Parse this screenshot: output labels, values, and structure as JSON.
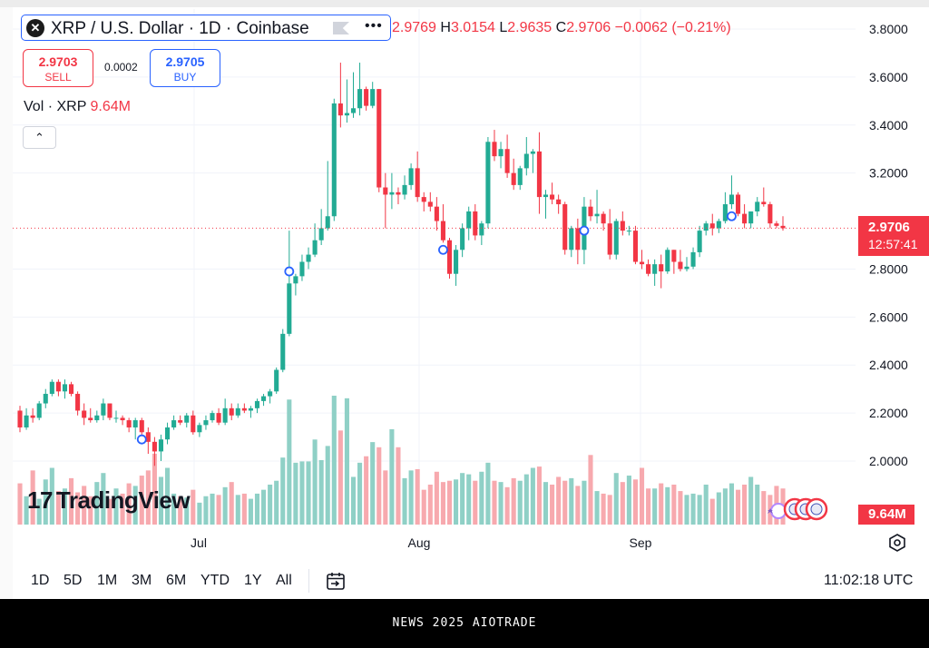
{
  "header": {
    "logo_glyph": "✕",
    "title": "XRP / U.S. Dollar · 1D · Coinbase",
    "more_glyph": "•••",
    "ohlc": {
      "o_label": "",
      "o_value": "2.9769",
      "h_label": "H",
      "h_value": "3.0154",
      "l_label": "L",
      "l_value": "2.9635",
      "c_label": "C",
      "c_value": "2.9706",
      "change": "−0.0062 (−0.21%)"
    }
  },
  "trade": {
    "sell_price": "2.9703",
    "sell_label": "SELL",
    "spread": "0.0002",
    "buy_price": "2.9705",
    "buy_label": "BUY"
  },
  "volume_legend": {
    "label": "Vol · XRP",
    "value": "9.64M"
  },
  "collapse_glyph": "⌃",
  "watermark": {
    "mark": "17",
    "text": "TradingView"
  },
  "price_label": {
    "price": "2.9706",
    "countdown": "12:57:41"
  },
  "volume_label": "9.64M",
  "bottom_bar": {
    "ranges": [
      "1D",
      "5D",
      "1M",
      "3M",
      "6M",
      "YTD",
      "1Y",
      "All"
    ],
    "clock": "11:02:18 UTC"
  },
  "footer": "NEWS 2025 AIOTRADE",
  "colors": {
    "up": "#22ab94",
    "down": "#f23645",
    "up_vol": "#8fd0c6",
    "down_vol": "#f7a9ae",
    "accent": "#2962ff"
  },
  "chart_data": {
    "type": "candlestick",
    "symbol": "XRP / U.S. Dollar",
    "interval": "1D",
    "exchange": "Coinbase",
    "y_axis": {
      "ticks": [
        "3.8000",
        "3.6000",
        "3.4000",
        "3.2000",
        "2.8000",
        "2.6000",
        "2.4000",
        "2.2000",
        "2.0000"
      ],
      "ylim": [
        1.75,
        3.85
      ]
    },
    "x_axis": {
      "ticks": [
        "Jul",
        "Aug",
        "Sep"
      ]
    },
    "last_price": 2.9706,
    "candles": [
      {
        "o": 2.21,
        "h": 2.23,
        "l": 2.12,
        "c": 2.14
      },
      {
        "o": 2.14,
        "h": 2.22,
        "l": 2.13,
        "c": 2.19
      },
      {
        "o": 2.19,
        "h": 2.22,
        "l": 2.16,
        "c": 2.18
      },
      {
        "o": 2.18,
        "h": 2.25,
        "l": 2.17,
        "c": 2.24
      },
      {
        "o": 2.24,
        "h": 2.3,
        "l": 2.22,
        "c": 2.28
      },
      {
        "o": 2.28,
        "h": 2.34,
        "l": 2.27,
        "c": 2.33
      },
      {
        "o": 2.33,
        "h": 2.34,
        "l": 2.27,
        "c": 2.29
      },
      {
        "o": 2.29,
        "h": 2.34,
        "l": 2.26,
        "c": 2.32
      },
      {
        "o": 2.32,
        "h": 2.33,
        "l": 2.27,
        "c": 2.28
      },
      {
        "o": 2.28,
        "h": 2.29,
        "l": 2.19,
        "c": 2.21
      },
      {
        "o": 2.21,
        "h": 2.24,
        "l": 2.15,
        "c": 2.18
      },
      {
        "o": 2.18,
        "h": 2.22,
        "l": 2.16,
        "c": 2.17
      },
      {
        "o": 2.17,
        "h": 2.21,
        "l": 2.16,
        "c": 2.19
      },
      {
        "o": 2.19,
        "h": 2.26,
        "l": 2.17,
        "c": 2.24
      },
      {
        "o": 2.24,
        "h": 2.24,
        "l": 2.17,
        "c": 2.18
      },
      {
        "o": 2.18,
        "h": 2.21,
        "l": 2.16,
        "c": 2.18
      },
      {
        "o": 2.18,
        "h": 2.19,
        "l": 2.15,
        "c": 2.17
      },
      {
        "o": 2.17,
        "h": 2.18,
        "l": 2.12,
        "c": 2.14
      },
      {
        "o": 2.14,
        "h": 2.18,
        "l": 2.09,
        "c": 2.17
      },
      {
        "o": 2.17,
        "h": 2.18,
        "l": 2.1,
        "c": 2.12
      },
      {
        "o": 2.12,
        "h": 2.14,
        "l": 2.03,
        "c": 2.08
      },
      {
        "o": 2.08,
        "h": 2.1,
        "l": 1.98,
        "c": 2.04
      },
      {
        "o": 2.04,
        "h": 2.11,
        "l": 2.0,
        "c": 2.09
      },
      {
        "o": 2.09,
        "h": 2.16,
        "l": 2.07,
        "c": 2.14
      },
      {
        "o": 2.14,
        "h": 2.19,
        "l": 2.13,
        "c": 2.17
      },
      {
        "o": 2.17,
        "h": 2.19,
        "l": 2.15,
        "c": 2.16
      },
      {
        "o": 2.16,
        "h": 2.2,
        "l": 2.14,
        "c": 2.19
      },
      {
        "o": 2.19,
        "h": 2.21,
        "l": 2.11,
        "c": 2.12
      },
      {
        "o": 2.12,
        "h": 2.16,
        "l": 2.1,
        "c": 2.15
      },
      {
        "o": 2.15,
        "h": 2.19,
        "l": 2.13,
        "c": 2.17
      },
      {
        "o": 2.17,
        "h": 2.21,
        "l": 2.16,
        "c": 2.2
      },
      {
        "o": 2.2,
        "h": 2.22,
        "l": 2.15,
        "c": 2.16
      },
      {
        "o": 2.16,
        "h": 2.26,
        "l": 2.15,
        "c": 2.22
      },
      {
        "o": 2.22,
        "h": 2.24,
        "l": 2.17,
        "c": 2.19
      },
      {
        "o": 2.19,
        "h": 2.24,
        "l": 2.18,
        "c": 2.22
      },
      {
        "o": 2.22,
        "h": 2.24,
        "l": 2.2,
        "c": 2.21
      },
      {
        "o": 2.21,
        "h": 2.23,
        "l": 2.18,
        "c": 2.22
      },
      {
        "o": 2.22,
        "h": 2.26,
        "l": 2.2,
        "c": 2.25
      },
      {
        "o": 2.25,
        "h": 2.28,
        "l": 2.23,
        "c": 2.27
      },
      {
        "o": 2.27,
        "h": 2.3,
        "l": 2.24,
        "c": 2.29
      },
      {
        "o": 2.29,
        "h": 2.39,
        "l": 2.28,
        "c": 2.38
      },
      {
        "o": 2.38,
        "h": 2.55,
        "l": 2.37,
        "c": 2.53
      },
      {
        "o": 2.53,
        "h": 2.96,
        "l": 2.52,
        "c": 2.74
      },
      {
        "o": 2.74,
        "h": 2.78,
        "l": 2.69,
        "c": 2.77
      },
      {
        "o": 2.77,
        "h": 2.86,
        "l": 2.75,
        "c": 2.83
      },
      {
        "o": 2.83,
        "h": 2.89,
        "l": 2.8,
        "c": 2.86
      },
      {
        "o": 2.86,
        "h": 2.99,
        "l": 2.85,
        "c": 2.92
      },
      {
        "o": 2.92,
        "h": 3.05,
        "l": 2.9,
        "c": 2.97
      },
      {
        "o": 2.97,
        "h": 3.25,
        "l": 2.96,
        "c": 3.02
      },
      {
        "o": 3.02,
        "h": 3.51,
        "l": 3.0,
        "c": 3.49
      },
      {
        "o": 3.49,
        "h": 3.66,
        "l": 3.39,
        "c": 3.44
      },
      {
        "o": 3.44,
        "h": 3.59,
        "l": 3.41,
        "c": 3.45
      },
      {
        "o": 3.45,
        "h": 3.62,
        "l": 3.43,
        "c": 3.47
      },
      {
        "o": 3.47,
        "h": 3.66,
        "l": 3.44,
        "c": 3.55
      },
      {
        "o": 3.55,
        "h": 3.56,
        "l": 3.46,
        "c": 3.48
      },
      {
        "o": 3.48,
        "h": 3.58,
        "l": 3.47,
        "c": 3.55
      },
      {
        "o": 3.55,
        "h": 3.55,
        "l": 3.12,
        "c": 3.14
      },
      {
        "o": 3.14,
        "h": 3.2,
        "l": 2.97,
        "c": 3.11
      },
      {
        "o": 3.11,
        "h": 3.2,
        "l": 3.05,
        "c": 3.12
      },
      {
        "o": 3.12,
        "h": 3.14,
        "l": 3.07,
        "c": 3.11
      },
      {
        "o": 3.11,
        "h": 3.19,
        "l": 3.09,
        "c": 3.15
      },
      {
        "o": 3.15,
        "h": 3.24,
        "l": 3.13,
        "c": 3.22
      },
      {
        "o": 3.22,
        "h": 3.29,
        "l": 3.08,
        "c": 3.1
      },
      {
        "o": 3.1,
        "h": 3.12,
        "l": 3.04,
        "c": 3.08
      },
      {
        "o": 3.08,
        "h": 3.12,
        "l": 3.04,
        "c": 3.06
      },
      {
        "o": 3.06,
        "h": 3.1,
        "l": 2.96,
        "c": 3.0
      },
      {
        "o": 3.0,
        "h": 3.07,
        "l": 2.91,
        "c": 2.92
      },
      {
        "o": 2.92,
        "h": 2.93,
        "l": 2.76,
        "c": 2.78
      },
      {
        "o": 2.78,
        "h": 2.9,
        "l": 2.73,
        "c": 2.88
      },
      {
        "o": 2.88,
        "h": 2.99,
        "l": 2.85,
        "c": 2.97
      },
      {
        "o": 2.97,
        "h": 3.06,
        "l": 2.92,
        "c": 3.04
      },
      {
        "o": 3.04,
        "h": 3.07,
        "l": 2.92,
        "c": 2.94
      },
      {
        "o": 2.94,
        "h": 3.0,
        "l": 2.9,
        "c": 2.99
      },
      {
        "o": 2.99,
        "h": 3.35,
        "l": 2.97,
        "c": 3.33
      },
      {
        "o": 3.33,
        "h": 3.38,
        "l": 3.25,
        "c": 3.27
      },
      {
        "o": 3.27,
        "h": 3.33,
        "l": 3.22,
        "c": 3.3
      },
      {
        "o": 3.3,
        "h": 3.36,
        "l": 3.18,
        "c": 3.2
      },
      {
        "o": 3.2,
        "h": 3.26,
        "l": 3.13,
        "c": 3.15
      },
      {
        "o": 3.15,
        "h": 3.23,
        "l": 3.13,
        "c": 3.22
      },
      {
        "o": 3.22,
        "h": 3.35,
        "l": 3.19,
        "c": 3.28
      },
      {
        "o": 3.28,
        "h": 3.3,
        "l": 3.2,
        "c": 3.29
      },
      {
        "o": 3.29,
        "h": 3.37,
        "l": 3.03,
        "c": 3.1
      },
      {
        "o": 3.1,
        "h": 3.13,
        "l": 3.01,
        "c": 3.11
      },
      {
        "o": 3.11,
        "h": 3.16,
        "l": 3.07,
        "c": 3.09
      },
      {
        "o": 3.09,
        "h": 3.11,
        "l": 3.03,
        "c": 3.07
      },
      {
        "o": 3.07,
        "h": 3.08,
        "l": 2.86,
        "c": 2.88
      },
      {
        "o": 2.88,
        "h": 2.98,
        "l": 2.85,
        "c": 2.97
      },
      {
        "o": 2.97,
        "h": 3.01,
        "l": 2.82,
        "c": 2.88
      },
      {
        "o": 2.88,
        "h": 3.1,
        "l": 2.82,
        "c": 3.06
      },
      {
        "o": 3.06,
        "h": 3.09,
        "l": 3.0,
        "c": 3.02
      },
      {
        "o": 3.02,
        "h": 3.13,
        "l": 2.99,
        "c": 3.03
      },
      {
        "o": 3.03,
        "h": 3.04,
        "l": 2.96,
        "c": 2.99
      },
      {
        "o": 2.99,
        "h": 3.05,
        "l": 2.84,
        "c": 2.86
      },
      {
        "o": 2.86,
        "h": 3.01,
        "l": 2.84,
        "c": 3.0
      },
      {
        "o": 3.0,
        "h": 3.04,
        "l": 2.94,
        "c": 2.96
      },
      {
        "o": 2.96,
        "h": 2.98,
        "l": 2.94,
        "c": 2.96
      },
      {
        "o": 2.96,
        "h": 2.98,
        "l": 2.82,
        "c": 2.83
      },
      {
        "o": 2.83,
        "h": 2.88,
        "l": 2.8,
        "c": 2.82
      },
      {
        "o": 2.82,
        "h": 2.84,
        "l": 2.77,
        "c": 2.78
      },
      {
        "o": 2.78,
        "h": 2.84,
        "l": 2.73,
        "c": 2.82
      },
      {
        "o": 2.82,
        "h": 2.86,
        "l": 2.72,
        "c": 2.79
      },
      {
        "o": 2.79,
        "h": 2.89,
        "l": 2.78,
        "c": 2.88
      },
      {
        "o": 2.88,
        "h": 2.88,
        "l": 2.78,
        "c": 2.83
      },
      {
        "o": 2.83,
        "h": 2.88,
        "l": 2.79,
        "c": 2.8
      },
      {
        "o": 2.8,
        "h": 2.85,
        "l": 2.79,
        "c": 2.81
      },
      {
        "o": 2.81,
        "h": 2.89,
        "l": 2.8,
        "c": 2.87
      },
      {
        "o": 2.87,
        "h": 2.98,
        "l": 2.85,
        "c": 2.96
      },
      {
        "o": 2.96,
        "h": 3.0,
        "l": 2.94,
        "c": 2.99
      },
      {
        "o": 2.99,
        "h": 3.03,
        "l": 2.94,
        "c": 2.97
      },
      {
        "o": 2.97,
        "h": 3.01,
        "l": 2.95,
        "c": 3.0
      },
      {
        "o": 3.0,
        "h": 3.12,
        "l": 2.99,
        "c": 3.07
      },
      {
        "o": 3.07,
        "h": 3.19,
        "l": 3.05,
        "c": 3.11
      },
      {
        "o": 3.11,
        "h": 3.12,
        "l": 3.02,
        "c": 3.03
      },
      {
        "o": 3.03,
        "h": 3.07,
        "l": 2.97,
        "c": 2.99
      },
      {
        "o": 2.99,
        "h": 3.04,
        "l": 2.97,
        "c": 3.04
      },
      {
        "o": 3.04,
        "h": 3.1,
        "l": 3.02,
        "c": 3.08
      },
      {
        "o": 3.08,
        "h": 3.14,
        "l": 3.06,
        "c": 3.07
      },
      {
        "o": 3.07,
        "h": 3.08,
        "l": 2.97,
        "c": 2.99
      },
      {
        "o": 2.99,
        "h": 3.0,
        "l": 2.97,
        "c": 2.98
      },
      {
        "o": 2.98,
        "h": 3.02,
        "l": 2.96,
        "c": 2.97
      }
    ],
    "volume_relative": [
      0.32,
      0.22,
      0.42,
      0.2,
      0.35,
      0.44,
      0.26,
      0.28,
      0.36,
      0.25,
      0.3,
      0.22,
      0.33,
      0.4,
      0.2,
      0.28,
      0.24,
      0.32,
      0.3,
      0.38,
      0.42,
      0.55,
      0.37,
      0.44,
      0.24,
      0.22,
      0.21,
      0.27,
      0.17,
      0.22,
      0.24,
      0.23,
      0.29,
      0.33,
      0.23,
      0.24,
      0.2,
      0.24,
      0.27,
      0.31,
      0.34,
      0.52,
      0.97,
      0.48,
      0.49,
      0.49,
      0.66,
      0.5,
      0.61,
      1.0,
      0.73,
      0.98,
      0.37,
      0.48,
      0.53,
      0.64,
      0.6,
      0.42,
      0.74,
      0.6,
      0.36,
      0.42,
      0.43,
      0.27,
      0.31,
      0.41,
      0.33,
      0.34,
      0.35,
      0.4,
      0.39,
      0.34,
      0.41,
      0.48,
      0.34,
      0.33,
      0.29,
      0.36,
      0.34,
      0.39,
      0.44,
      0.45,
      0.33,
      0.31,
      0.37,
      0.34,
      0.36,
      0.3,
      0.34,
      0.54,
      0.26,
      0.24,
      0.23,
      0.4,
      0.33,
      0.38,
      0.35,
      0.44,
      0.28,
      0.28,
      0.32,
      0.29,
      0.31,
      0.26,
      0.23,
      0.24,
      0.23,
      0.31,
      0.2,
      0.25,
      0.28,
      0.32,
      0.27,
      0.31,
      0.37,
      0.31,
      0.26,
      0.23,
      0.3,
      0.28,
      0.24,
      0.22
    ]
  }
}
